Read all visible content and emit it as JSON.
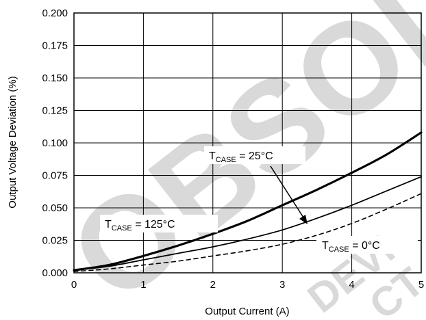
{
  "chart_data": {
    "type": "line",
    "title": "",
    "xlabel": "Output Current (A)",
    "ylabel": "Output Voltage Deviation (%)",
    "xlim": [
      0,
      5
    ],
    "ylim": [
      0,
      0.2
    ],
    "x_ticks": [
      "0",
      "1",
      "2",
      "3",
      "4",
      "5"
    ],
    "y_ticks": [
      "0.000",
      "0.025",
      "0.050",
      "0.075",
      "0.100",
      "0.125",
      "0.150",
      "0.175",
      "0.200"
    ],
    "grid": true,
    "series": [
      {
        "name": "TCASE = 25°C",
        "style": "thick-solid",
        "x": [
          0,
          0.5,
          1,
          1.5,
          2,
          2.5,
          3,
          3.5,
          4,
          4.5,
          5
        ],
        "y": [
          0.002,
          0.006,
          0.013,
          0.021,
          0.03,
          0.04,
          0.052,
          0.064,
          0.077,
          0.091,
          0.108
        ]
      },
      {
        "name": "TCASE = 125°C",
        "style": "thin-solid",
        "x": [
          0,
          0.5,
          1,
          1.5,
          2,
          2.5,
          3,
          3.5,
          4,
          4.5,
          5
        ],
        "y": [
          0.002,
          0.005,
          0.01,
          0.015,
          0.02,
          0.026,
          0.033,
          0.042,
          0.052,
          0.063,
          0.074
        ]
      },
      {
        "name": "TCASE = 0°C",
        "style": "dashed",
        "x": [
          0,
          0.5,
          1,
          1.5,
          2,
          2.5,
          3,
          3.5,
          4,
          4.5,
          5
        ],
        "y": [
          0.001,
          0.003,
          0.006,
          0.009,
          0.013,
          0.017,
          0.022,
          0.029,
          0.038,
          0.049,
          0.061
        ]
      }
    ],
    "annotations": [
      {
        "main": "T",
        "sub": "CASE",
        "rest": " = 25°C"
      },
      {
        "main": "T",
        "sub": "CASE",
        "rest": " = 125°C"
      },
      {
        "main": "T",
        "sub": "CASE",
        "rest": " = 0°C"
      }
    ]
  },
  "watermark": {
    "text_large": "OBSOL",
    "text_small_1": "DEVI",
    "text_small_2": "CT",
    "color": "#d9d9d9"
  }
}
